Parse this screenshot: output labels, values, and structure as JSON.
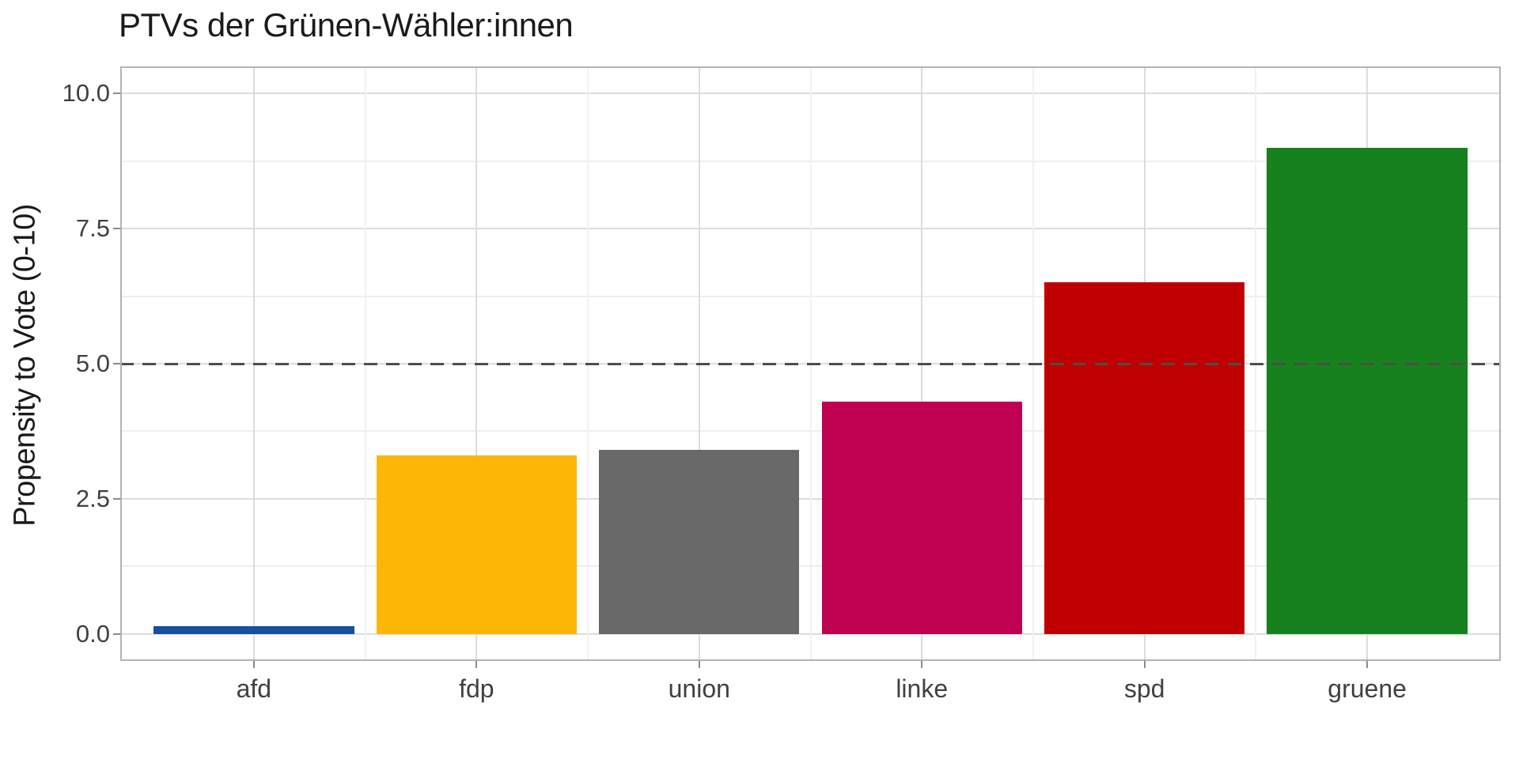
{
  "title": "PTVs der Grünen-Wähler:innen",
  "chart_data": {
    "type": "bar",
    "title": "PTVs der Grünen-Wähler:innen",
    "xlabel": "",
    "ylabel": "Propensity to Vote (0-10)",
    "categories": [
      "afd",
      "fdp",
      "union",
      "linke",
      "spd",
      "gruene"
    ],
    "values": [
      0.15,
      3.3,
      3.4,
      4.3,
      6.5,
      9.0
    ],
    "bar_colors": [
      "#15529e",
      "#fcb605",
      "#696969",
      "#c00051",
      "#c00000",
      "#17811d"
    ],
    "ylim": [
      -0.5,
      10.5
    ],
    "yticks": [
      0,
      2.5,
      5,
      7.5,
      10
    ],
    "ytick_labels": [
      "0.0",
      "2.5",
      "5.0",
      "7.5",
      "10.0"
    ],
    "minor_yticks": [
      1.25,
      3.75,
      6.25,
      8.75
    ],
    "reference_line": {
      "y": 5,
      "style": "dashed"
    },
    "grid": "major-and-minor",
    "legend": "none",
    "colors": {
      "background": "#ffffff",
      "panel_border": "#b3b3b3",
      "grid_major": "#dcdcdc",
      "grid_minor": "#efefef",
      "axis_tick": "#8c8c8c",
      "tick_label_text": "#404040",
      "title_text": "#1a1a1a",
      "reference_line": "#4d4d4d"
    }
  }
}
